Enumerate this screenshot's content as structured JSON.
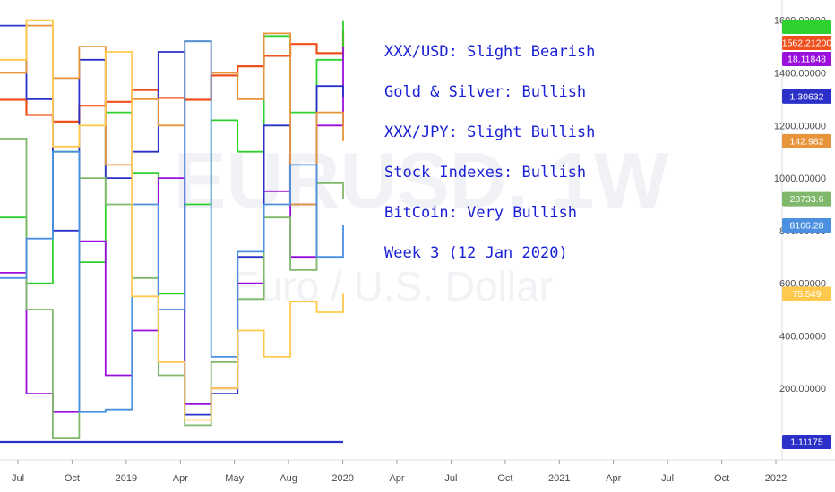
{
  "watermark": {
    "symbol": "EURUSD, 1W",
    "description": "Euro / U.S. Dollar"
  },
  "annotations": [
    "XXX/USD: Slight Bearish",
    "Gold & Silver:  Bullish",
    "XXX/JPY: Slight Bullish",
    "Stock Indexes:  Bullish",
    "BitCoin: Very Bullish",
    "Week 3 (12 Jan 2020)"
  ],
  "colors": {
    "red": "#f0501e",
    "green": "#2fd12f",
    "purple": "#9b0fdc",
    "navy": "#2b30c8",
    "orange": "#e8943a",
    "sage": "#7fb86a",
    "steel": "#4a8fe0",
    "yellow": "#ffc94d",
    "blue": "#1a20d6"
  },
  "chart_data": {
    "type": "line",
    "x_range": [
      "2018-06-01",
      "2022-02-01"
    ],
    "y_range": [
      0,
      1650
    ],
    "y_ticks": [
      "200.00000",
      "400.00000",
      "600.00000",
      "800.00000",
      "1000.00000",
      "1200.00000",
      "1400.00000",
      "1600.00000"
    ],
    "x_ticks": [
      "Jul",
      "Oct",
      "2019",
      "Apr",
      "May",
      "Aug",
      "2020",
      "Apr",
      "Jul",
      "Oct",
      "2021",
      "Apr",
      "Jul",
      "Oct",
      "2022"
    ],
    "series": [
      {
        "color_key": "red",
        "price_label": "1562.21200",
        "values": [
          1298,
          1240,
          1215,
          1275,
          1290,
          1335,
          1305,
          1298,
          1390,
          1425,
          1465,
          1510,
          1475,
          1562
        ]
      },
      {
        "color_key": "green",
        "price_label": "",
        "values": [
          850,
          600,
          1100,
          680,
          1250,
          1020,
          560,
          900,
          1220,
          1100,
          1540,
          1250,
          1450,
          1600
        ]
      },
      {
        "color_key": "purple",
        "price_label": "18.11848",
        "values": [
          640,
          180,
          110,
          760,
          250,
          420,
          1000,
          140,
          200,
          600,
          950,
          700,
          1200,
          1500
        ]
      },
      {
        "color_key": "navy",
        "price_label": "1.30632",
        "values": [
          1580,
          1300,
          800,
          1450,
          1000,
          1100,
          1480,
          100,
          180,
          700,
          1200,
          900,
          1350,
          1310
        ]
      },
      {
        "color_key": "orange",
        "price_label": "142.982",
        "values": [
          1400,
          1580,
          1380,
          1500,
          1050,
          1300,
          1200,
          1520,
          1400,
          1300,
          1550,
          900,
          1250,
          1140
        ]
      },
      {
        "color_key": "sage",
        "price_label": "28733.6",
        "values": [
          1150,
          500,
          10,
          1000,
          900,
          620,
          250,
          60,
          300,
          540,
          850,
          650,
          980,
          920
        ]
      },
      {
        "color_key": "steel",
        "price_label": "8106.28",
        "values": [
          620,
          770,
          1100,
          110,
          120,
          900,
          500,
          1520,
          320,
          720,
          900,
          1050,
          700,
          820
        ]
      },
      {
        "color_key": "yellow",
        "price_label": "75.549",
        "values": [
          1450,
          1600,
          1120,
          1200,
          1480,
          550,
          300,
          80,
          200,
          420,
          320,
          530,
          490,
          560
        ]
      }
    ],
    "extra_labels": [
      {
        "color_key": "navy",
        "price_label": "1.11175",
        "value": 1.11175
      }
    ],
    "grid": false,
    "legend": "none"
  }
}
